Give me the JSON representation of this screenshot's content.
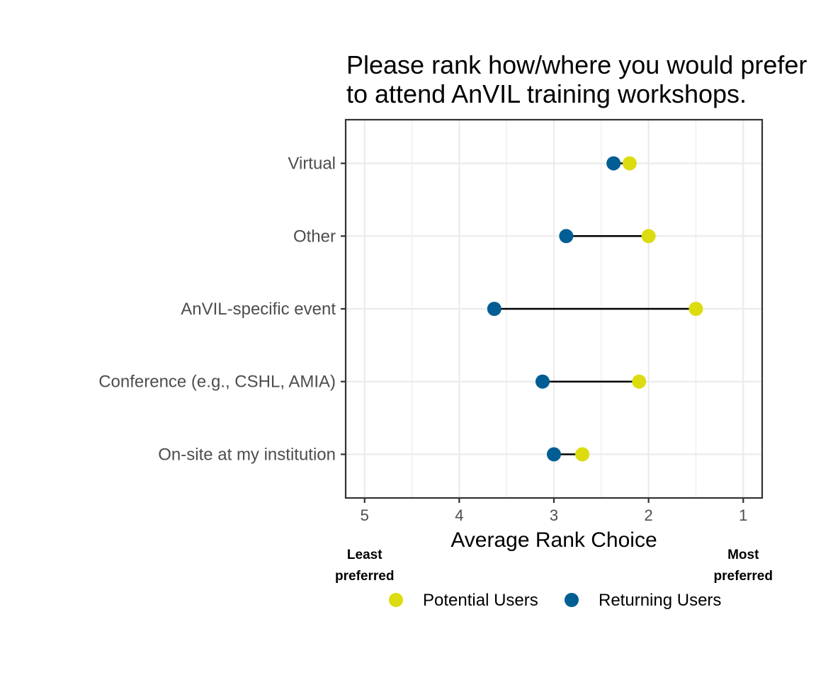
{
  "chart_data": {
    "type": "dumbbell",
    "title_lines": [
      "Please rank how/where you would prefer",
      "to attend AnVIL training workshops."
    ],
    "xlabel": "Average Rank Choice",
    "x_reversed": true,
    "xlim": [
      5.2,
      0.8
    ],
    "x_ticks": [
      5,
      4,
      3,
      2,
      1
    ],
    "x_annotations": [
      {
        "x": 5,
        "lines": [
          "Least",
          "preferred"
        ]
      },
      {
        "x": 1,
        "lines": [
          "Most",
          "preferred"
        ]
      }
    ],
    "categories": [
      "Virtual",
      "Other",
      "AnVIL-specific event",
      "Conference (e.g., CSHL, AMIA)",
      "On-site at my institution"
    ],
    "series": [
      {
        "name": "Potential Users",
        "color": "#dcdc10",
        "values": [
          2.2,
          2.0,
          1.5,
          2.1,
          2.7
        ]
      },
      {
        "name": "Returning Users",
        "color": "#015e94",
        "values": [
          2.37,
          2.87,
          3.63,
          3.12,
          3.0
        ]
      }
    ],
    "grid": true,
    "legend_position": "bottom"
  }
}
